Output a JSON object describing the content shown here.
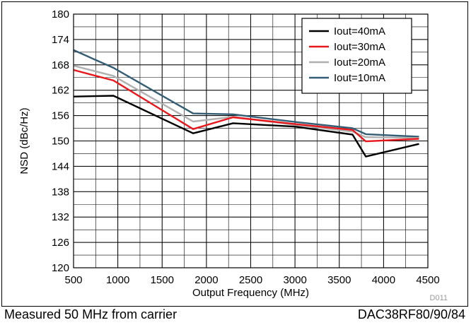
{
  "chart_data": {
    "type": "line",
    "xlabel": "Output Frequency (MHz)",
    "ylabel": "NSD (dBc/Hz)",
    "xlim": [
      500,
      4500
    ],
    "ylim": [
      120,
      180
    ],
    "xticks": [
      500,
      1000,
      1500,
      2000,
      2500,
      3000,
      3500,
      4000,
      4500
    ],
    "yticks": [
      120,
      126,
      132,
      138,
      144,
      150,
      156,
      162,
      168,
      174,
      180
    ],
    "x_minor_step": 250,
    "y_minor_step": 3,
    "grid": true,
    "legend_position": "top-right",
    "series": [
      {
        "name": "Iout=40mA",
        "color": "#000000",
        "x": [
          500,
          950,
          1850,
          2300,
          3000,
          3650,
          3800,
          4400
        ],
        "y": [
          160.5,
          160.7,
          151.8,
          154.2,
          153.4,
          151.5,
          146.3,
          149.3
        ]
      },
      {
        "name": "Iout=30mA",
        "color": "#e8171b",
        "x": [
          500,
          950,
          1850,
          2300,
          3000,
          3650,
          3800,
          4400
        ],
        "y": [
          166.8,
          164.3,
          152.8,
          155.6,
          154.0,
          152.6,
          149.9,
          150.5
        ]
      },
      {
        "name": "Iout=20mA",
        "color": "#b0b0b0",
        "x": [
          500,
          950,
          1850,
          2300,
          3000,
          3650,
          3800,
          4400
        ],
        "y": [
          167.8,
          165.4,
          154.6,
          155.7,
          153.8,
          152.2,
          150.9,
          150.7
        ]
      },
      {
        "name": "Iout=10mA",
        "color": "#335d75",
        "x": [
          500,
          950,
          1850,
          2300,
          3000,
          3650,
          3800,
          4400
        ],
        "y": [
          171.5,
          167.3,
          156.5,
          156.3,
          154.5,
          153.0,
          151.6,
          151.0
        ]
      }
    ],
    "annotation": "D011"
  },
  "caption": {
    "left": "Measured 50 MHz from carrier",
    "right": "DAC38RF80/90/84"
  }
}
